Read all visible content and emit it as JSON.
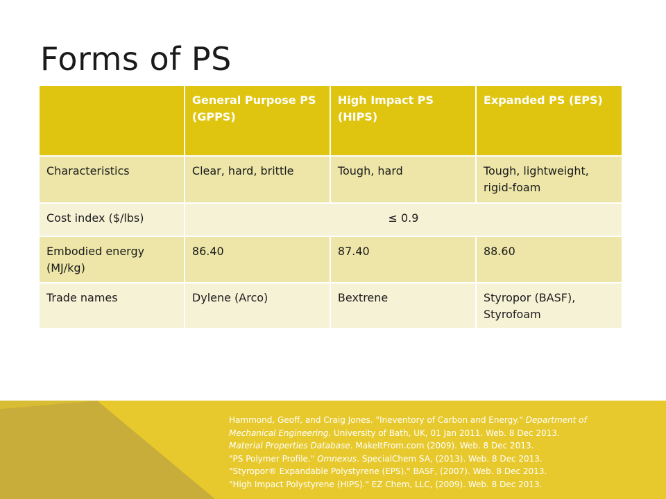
{
  "title": "Forms of PS",
  "table": {
    "headers": [
      "",
      "General Purpose PS (GPPS)",
      "High Impact PS (HIPS)",
      "Expanded PS (EPS)"
    ],
    "rows": [
      {
        "label": "Characteristics",
        "cells": [
          "Clear, hard, brittle",
          "Tough, hard",
          "Tough, lightweight, rigid-foam"
        ]
      },
      {
        "label": "Cost index ($/lbs)",
        "merged": "≤ 0.9"
      },
      {
        "label": "Embodied energy (MJ/kg)",
        "cells": [
          "86.40",
          "87.40",
          "88.60"
        ]
      },
      {
        "label": "Trade names",
        "cells": [
          "Dylene (Arco)",
          "Bextrene",
          "Styropor (BASF), Styrofoam"
        ]
      }
    ]
  },
  "references": [
    {
      "plain1": "Hammond, Geoff, and Craig Jones. \"Ineventory of Carbon and Energy.\" ",
      "italic": "Department of",
      "plain2": ""
    },
    {
      "plain1": "",
      "italic": "Mechanical Engineering",
      "plain2": ". University of Bath, UK, 01 Jan 2011. Web. 8 Dec 2013."
    },
    {
      "plain1": "",
      "italic": "Material Properties Database",
      "plain2": ". MakeItFrom.com (2009). Web. 8 Dec 2013."
    },
    {
      "plain1": "\"PS Polymer Profile.\" ",
      "italic": "Omnexus",
      "plain2": ". SpecialChem SA, (2013). Web. 8 Dec 2013."
    },
    {
      "plain1": "\"Styropor® Expandable Polystyrene (EPS).\" BASF, (2007). Web. 8 Dec 2013.",
      "italic": "",
      "plain2": ""
    },
    {
      "plain1": "\"High Impact Polystyrene (HIPS).\" EZ Chem, LLC, (2009). Web. 8 Dec 2013.",
      "italic": "",
      "plain2": ""
    }
  ],
  "colors": {
    "header": "#dfc50f",
    "row_dark": "#ede6a8",
    "row_light": "#f6f2d6",
    "footer": "#e7c92d",
    "footer_shade": "#c9ad3b"
  }
}
